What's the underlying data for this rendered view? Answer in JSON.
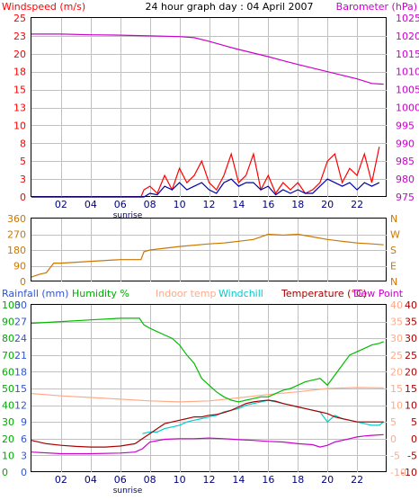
{
  "chart_data": [
    {
      "type": "line",
      "title": "24 hour graph day : 04 April 2007",
      "left_axis_label": "Windspeed (m/s)",
      "right_axis_label": "Barometer (hPa)",
      "x": {
        "range": [
          0,
          24
        ],
        "ticks": [
          "02",
          "04",
          "06",
          "08",
          "10",
          "12",
          "14",
          "16",
          "18",
          "20",
          "22"
        ],
        "marker": "sunrise",
        "marker_at": 6.5
      },
      "left_axis": {
        "range": [
          0,
          25
        ],
        "ticks": [
          0,
          3,
          5,
          8,
          10,
          13,
          15,
          18,
          20,
          23,
          25
        ]
      },
      "right_axis": {
        "range": [
          975,
          1025
        ],
        "ticks": [
          975,
          980,
          985,
          990,
          995,
          1000,
          1005,
          1010,
          1015,
          1020,
          1025
        ]
      },
      "grid": true,
      "series": [
        {
          "name": "Windspeed",
          "axis": "left",
          "color": "#ff0000",
          "x": [
            0,
            7.4,
            7.6,
            8,
            8.5,
            9,
            9.5,
            10,
            10.5,
            11,
            11.5,
            12,
            12.5,
            13,
            13.5,
            14,
            14.5,
            15,
            15.5,
            16,
            16.5,
            17,
            17.5,
            18,
            18.5,
            19,
            19.5,
            20,
            20.5,
            21,
            21.5,
            22,
            22.5,
            23,
            23.5
          ],
          "values": [
            0,
            0,
            1,
            1.5,
            0.5,
            3,
            1,
            4,
            2,
            3,
            5,
            2,
            1,
            3,
            6,
            2,
            3,
            6,
            1,
            3,
            0.5,
            2,
            1,
            2,
            0.5,
            1,
            2,
            5,
            6,
            2,
            4,
            3,
            6,
            2,
            7
          ]
        },
        {
          "name": "Wind gust",
          "axis": "left",
          "color": "#0000aa",
          "x": [
            0,
            7.6,
            8,
            8.5,
            9,
            9.5,
            10,
            10.5,
            11,
            11.5,
            12,
            12.5,
            13,
            13.5,
            14,
            14.5,
            15,
            15.5,
            16,
            16.5,
            17,
            17.5,
            18,
            18.5,
            19,
            19.5,
            20,
            20.5,
            21,
            21.5,
            22,
            22.5,
            23,
            23.5
          ],
          "values": [
            0,
            0,
            0.5,
            0.3,
            1.5,
            1,
            2,
            1,
            1.5,
            2,
            1,
            0.5,
            2,
            2.5,
            1.5,
            2,
            2,
            1,
            1.5,
            0.3,
            1,
            0.5,
            1,
            0.5,
            0.5,
            1.5,
            2.5,
            2,
            1.5,
            2,
            1,
            2,
            1.5,
            2
          ]
        },
        {
          "name": "Barometer",
          "axis": "right",
          "color": "#cc00cc",
          "x": [
            0,
            2,
            4,
            6,
            8,
            10,
            11,
            12,
            13,
            14,
            15,
            16,
            17,
            18,
            19,
            20,
            21,
            22,
            23,
            23.8
          ],
          "values": [
            1020.5,
            1020.5,
            1020.3,
            1020.2,
            1020,
            1019.8,
            1019.5,
            1018.5,
            1017.3,
            1016.2,
            1015.2,
            1014.2,
            1013.1,
            1012,
            1011,
            1010,
            1009,
            1008,
            1006.7,
            1006.5
          ]
        }
      ]
    },
    {
      "type": "line",
      "title": "",
      "x": {
        "range": [
          0,
          24
        ]
      },
      "left_axis": {
        "range": [
          0,
          360
        ],
        "ticks": [
          0,
          90,
          180,
          270,
          360
        ]
      },
      "right_axis_ticks": [
        "N",
        "W",
        "S",
        "E",
        "N"
      ],
      "grid": true,
      "series": [
        {
          "name": "Wind direction",
          "color": "#cc7700",
          "x": [
            0,
            0.5,
            1,
            1.5,
            2,
            4,
            6,
            7.4,
            7.6,
            8,
            10,
            12,
            13,
            14,
            15,
            16,
            17,
            18,
            19,
            20,
            21,
            22,
            23,
            23.8
          ],
          "values": [
            25,
            40,
            50,
            105,
            105,
            115,
            125,
            125,
            170,
            180,
            200,
            215,
            220,
            230,
            240,
            270,
            265,
            270,
            255,
            240,
            230,
            220,
            215,
            210
          ]
        }
      ]
    },
    {
      "type": "line",
      "title": "",
      "legend": [
        "Rainfall (mm)",
        "Humidity %",
        "Indoor temp",
        "Windchill",
        "Temperature (°C)",
        "Dew Point"
      ],
      "x": {
        "range": [
          0,
          24
        ],
        "ticks": [
          "02",
          "04",
          "06",
          "08",
          "10",
          "12",
          "14",
          "16",
          "18",
          "20",
          "22"
        ],
        "marker": "sunrise",
        "marker_at": 6.5
      },
      "rainfall_axis": {
        "range": [
          0,
          30
        ],
        "ticks": [
          0,
          3,
          6,
          9,
          12,
          15,
          18,
          21,
          24,
          27,
          30
        ]
      },
      "humidity_axis": {
        "range": [
          0,
          100
        ],
        "ticks": [
          0,
          10,
          20,
          30,
          40,
          50,
          60,
          70,
          80,
          90,
          100
        ]
      },
      "temp_axis_outer": {
        "range": [
          -10,
          40
        ],
        "ticks": [
          -10,
          -5,
          0,
          5,
          10,
          15,
          20,
          25,
          30,
          35,
          40
        ]
      },
      "temp_axis_inner": {
        "range": [
          -10,
          40
        ],
        "ticks": [
          -10,
          -5,
          0,
          5,
          10,
          15,
          20,
          25,
          30,
          35,
          40
        ]
      },
      "grid": true,
      "series": [
        {
          "name": "Humidity %",
          "axis": "humidity",
          "color": "#00bb00",
          "x": [
            0,
            2,
            4,
            6,
            7.3,
            7.6,
            8,
            8.5,
            9,
            9.5,
            10,
            10.5,
            11,
            11.5,
            12,
            12.5,
            13,
            13.5,
            14,
            14.5,
            15,
            15.5,
            16,
            16.5,
            17,
            17.5,
            18,
            18.5,
            19,
            19.5,
            20,
            20.5,
            21,
            21.5,
            22,
            22.5,
            23,
            23.5,
            23.8
          ],
          "values": [
            89,
            90,
            91,
            92,
            92,
            88,
            86,
            84,
            82,
            80,
            76,
            70,
            65,
            56,
            52,
            48,
            45,
            43,
            42,
            43,
            44,
            45,
            45,
            47,
            49,
            50,
            52,
            54,
            55,
            56,
            52,
            58,
            64,
            70,
            72,
            74,
            76,
            77,
            78
          ]
        },
        {
          "name": "Indoor temp",
          "axis": "temperature",
          "color": "#ffaa88",
          "x": [
            0,
            2,
            4,
            6,
            8,
            10,
            12,
            14,
            16,
            18,
            20,
            22,
            23.8
          ],
          "values": [
            13.5,
            12.8,
            12.3,
            11.8,
            11.3,
            11,
            11.3,
            12.2,
            13.2,
            14,
            15,
            15.3,
            15.2
          ]
        },
        {
          "name": "Windchill",
          "axis": "temperature",
          "color": "#00cccc",
          "x": [
            7.5,
            8,
            8.5,
            9,
            9.5,
            10,
            10.5,
            11,
            11.5,
            12,
            12.5,
            13,
            13.5,
            14,
            14.5,
            15,
            15.5,
            16,
            16.5,
            17,
            17.5,
            18,
            18.5,
            19,
            19.5,
            20,
            20.5,
            21,
            21.5,
            22,
            22.5,
            23,
            23.5,
            23.8
          ],
          "values": [
            1.5,
            2,
            2,
            3,
            3.5,
            4,
            5,
            5.5,
            6,
            6.5,
            7,
            8,
            8.5,
            9,
            10,
            10.5,
            11,
            11.5,
            11,
            10.5,
            10,
            9.5,
            9,
            8.5,
            8,
            5,
            7,
            6,
            5.5,
            5,
            4.5,
            4,
            4,
            5
          ]
        },
        {
          "name": "Temperature (°C)",
          "axis": "temperature",
          "color": "#aa0000",
          "x": [
            0,
            1,
            2,
            3,
            4,
            5,
            6,
            7,
            7.5,
            8,
            8.5,
            9,
            9.5,
            10,
            10.5,
            11,
            11.5,
            12,
            12.5,
            13,
            13.5,
            14,
            14.5,
            15,
            15.5,
            16,
            16.5,
            17,
            17.5,
            18,
            18.5,
            19,
            19.5,
            20,
            20.5,
            21,
            21.5,
            22,
            22.5,
            23,
            23.5,
            23.8
          ],
          "values": [
            -0.5,
            -1.5,
            -2,
            -2.3,
            -2.5,
            -2.5,
            -2.2,
            -1.5,
            0,
            1.5,
            3,
            4.5,
            5,
            5.5,
            6,
            6.5,
            6.5,
            7,
            7.2,
            7.8,
            8.5,
            9.5,
            10.5,
            11,
            11.3,
            11.5,
            11.2,
            10.5,
            10,
            9.5,
            9,
            8.5,
            8,
            7.5,
            6.5,
            6,
            5.5,
            5,
            5,
            5,
            5,
            5
          ]
        },
        {
          "name": "Dew Point",
          "axis": "temperature",
          "color": "#cc00cc",
          "x": [
            0,
            2,
            4,
            6,
            7,
            7.5,
            8,
            9,
            10,
            11,
            12,
            13,
            14,
            15,
            16,
            17,
            18,
            19,
            19.5,
            20,
            20.5,
            21,
            21.5,
            22,
            22.5,
            23,
            23.8
          ],
          "values": [
            -4,
            -4.5,
            -4.5,
            -4.3,
            -4,
            -3,
            -1,
            -0.2,
            0,
            0,
            0.2,
            0,
            -0.3,
            -0.5,
            -0.8,
            -1,
            -1.5,
            -1.8,
            -2.5,
            -2,
            -1,
            -0.5,
            0,
            0.5,
            0.8,
            1,
            1.2
          ]
        }
      ]
    }
  ]
}
